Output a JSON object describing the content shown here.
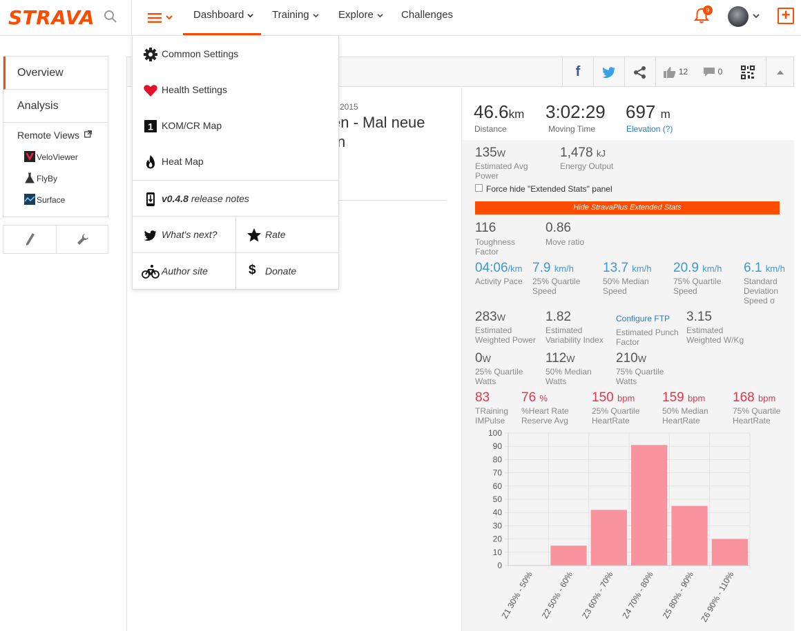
{
  "brand": {
    "logo_text": "STRAVA",
    "accent": "#fc4c02"
  },
  "topnav": {
    "items": [
      {
        "label": "Dashboard"
      },
      {
        "label": "Training"
      },
      {
        "label": "Explore"
      },
      {
        "label": "Challenges"
      }
    ],
    "notifications_count": "9"
  },
  "sidebar": {
    "tabs": [
      {
        "label": "Overview"
      },
      {
        "label": "Analysis"
      }
    ],
    "remote_views_label": "Remote Views",
    "remote_views": [
      {
        "label": "VeloViewer"
      },
      {
        "label": "FlyBy"
      },
      {
        "label": "Surface"
      }
    ]
  },
  "activity": {
    "date_fragment": "2015",
    "title_fragment_1": "en - Mal neue",
    "title_fragment_2": "n",
    "kudos_count": "12",
    "comments_count": "0"
  },
  "dropdown": {
    "items": [
      {
        "label": "Common Settings"
      },
      {
        "label": "Health Settings"
      },
      {
        "label": "KOM/CR Map"
      },
      {
        "label": "Heat Map"
      }
    ],
    "release_version": "v0.4.8",
    "release_suffix": " release notes",
    "whats_next": "What's next?",
    "rate": "Rate",
    "author_site": "Author site",
    "donate": "Donate"
  },
  "summary": {
    "distance": {
      "value": "46.6",
      "unit": "km",
      "label": "Distance"
    },
    "moving_time": {
      "value": "3:02:29",
      "label": "Moving Time"
    },
    "elevation": {
      "value": "697",
      "unit": "m",
      "label": "Elevation (?)"
    }
  },
  "extended": {
    "avg_power": {
      "value": "135",
      "unit": "W",
      "label1": "Estimated Avg",
      "label2": "Power"
    },
    "energy": {
      "value": "1,478",
      "unit": "kJ",
      "label1": "Energy Output"
    },
    "force_hide_label": "Force hide \"Extended Stats\" panel",
    "hide_button": "Hide StravaPlus Extended Stats",
    "toughness": {
      "value": "116",
      "label1": "Toughness",
      "label2": "Factor"
    },
    "move_ratio": {
      "value": "0.86",
      "label1": "Move ratio"
    },
    "pace": {
      "value": "04:06",
      "unit": "/km",
      "label1": "Activity Pace"
    },
    "q25_speed": {
      "value": "7.9",
      "unit": "km/h",
      "label1": "25% Quartile",
      "label2": "Speed"
    },
    "median_speed": {
      "value": "13.7",
      "unit": "km/h",
      "label1": "50% Median",
      "label2": "Speed"
    },
    "q75_speed": {
      "value": "20.9",
      "unit": "km/h",
      "label1": "75% Quartile",
      "label2": "Speed"
    },
    "stddev_speed": {
      "value": "6.1",
      "unit": "km/h",
      "label1": "Standard",
      "label2": "Deviation",
      "label3": "Speed σ"
    },
    "weighted_power": {
      "value": "283",
      "unit": "W",
      "label1": "Estimated",
      "label2": "Weighted Power"
    },
    "variability": {
      "value": "1.82",
      "label1": "Estimated",
      "label2": "Variability Index"
    },
    "configure_ftp": "Configure FTP",
    "punch": {
      "label1": "Estimated Punch",
      "label2": "Factor"
    },
    "wkg": {
      "value": "3.15",
      "label1": "Estimated",
      "label2": "Weighted W/Kg"
    },
    "q25_watts": {
      "value": "0",
      "unit": "W",
      "label1": "25% Quartile",
      "label2": "Watts"
    },
    "median_watts": {
      "value": "112",
      "unit": "W",
      "label1": "50% Median",
      "label2": "Watts"
    },
    "q75_watts": {
      "value": "210",
      "unit": "W",
      "label1": "75% Quartile",
      "label2": "Watts"
    },
    "trimp": {
      "value": "83",
      "label1": "TRaining",
      "label2": "IMPulse"
    },
    "hrr": {
      "value": "76",
      "unit": "%",
      "label1": "%Heart Rate",
      "label2": "Reserve Avg"
    },
    "q25_hr": {
      "value": "150",
      "unit": "bpm",
      "label1": "25% Quartile",
      "label2": "HeartRate"
    },
    "median_hr": {
      "value": "159",
      "unit": "bpm",
      "label1": "50% Median",
      "label2": "HeartRate"
    },
    "q75_hr": {
      "value": "168",
      "unit": "bpm",
      "label1": "75% Quartile",
      "label2": "HeartRate"
    }
  },
  "chart_data": {
    "type": "bar",
    "categories": [
      "Z1 30% - 50%",
      "Z2 50% - 60%",
      "Z3 60% - 70%",
      "Z4 70% - 80%",
      "Z5 80% - 90%",
      "Z6 90% - 110%"
    ],
    "values": [
      0,
      15,
      42,
      91,
      45,
      20
    ],
    "ylim": [
      0,
      100
    ],
    "yticks": [
      0,
      10,
      20,
      30,
      40,
      50,
      60,
      70,
      80,
      90,
      100
    ],
    "bar_color": "#f9949e",
    "grid": true
  }
}
